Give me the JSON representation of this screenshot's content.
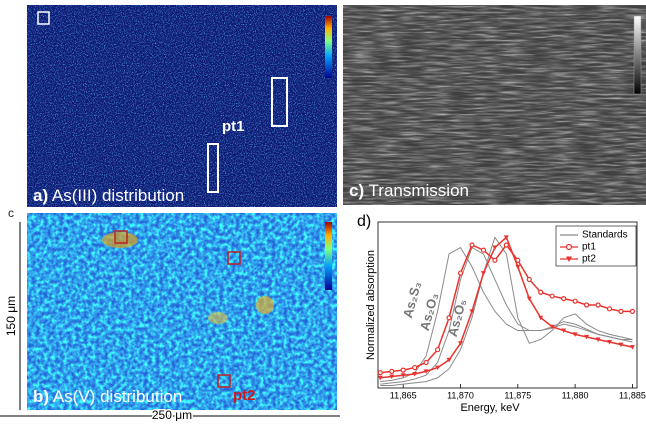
{
  "panels": {
    "a": {
      "letter": "a)",
      "label": "As(III) distribution",
      "point": "pt1"
    },
    "b": {
      "letter": "b)",
      "label": "As(V) distribution",
      "point": "pt2"
    },
    "c": {
      "letter": "c)",
      "label": "Transmission"
    },
    "edge_letter": "c"
  },
  "scale_bars": {
    "vertical": "150 μm",
    "horizontal": "250 μm"
  },
  "chart_data": {
    "type": "line",
    "panel_letter": "d)",
    "xlabel": "Energy, keV",
    "ylabel": "Normalized absorption",
    "xlim": [
      11862.8,
      11885.4
    ],
    "ylim": [
      0,
      1.3
    ],
    "xticks": [
      {
        "value": 11865,
        "label": "11,865"
      },
      {
        "value": 11870,
        "label": "11,870"
      },
      {
        "value": 11875,
        "label": "11,875"
      },
      {
        "value": 11880,
        "label": "11,880"
      },
      {
        "value": 11885,
        "label": "11,885"
      }
    ],
    "x": [
      11863,
      11864,
      11865,
      11866,
      11867,
      11868,
      11869,
      11870,
      11871,
      11872,
      11873,
      11874,
      11875,
      11876,
      11877,
      11878,
      11879,
      11880,
      11881,
      11882,
      11883,
      11884,
      11885
    ],
    "legend": "upper right",
    "standards": {
      "name": "Standards",
      "color": "#8a8a8a",
      "curves": [
        {
          "label": "As₂S₃",
          "values": [
            0.05,
            0.06,
            0.08,
            0.12,
            0.25,
            0.6,
            1.05,
            1.1,
            0.95,
            0.75,
            0.6,
            0.5,
            0.45,
            0.45,
            0.45,
            0.47,
            0.5,
            0.48,
            0.45,
            0.42,
            0.4,
            0.38,
            0.38
          ]
        },
        {
          "label": "As₂O₃",
          "values": [
            0.03,
            0.04,
            0.05,
            0.07,
            0.1,
            0.2,
            0.45,
            0.85,
            1.1,
            1.05,
            0.85,
            0.65,
            0.5,
            0.45,
            0.45,
            0.48,
            0.52,
            0.5,
            0.46,
            0.42,
            0.4,
            0.38,
            0.36
          ]
        },
        {
          "label": "As₂O₅",
          "values": [
            0.02,
            0.02,
            0.03,
            0.04,
            0.05,
            0.08,
            0.15,
            0.3,
            0.55,
            0.9,
            1.18,
            1.05,
            0.55,
            0.35,
            0.38,
            0.45,
            0.55,
            0.58,
            0.5,
            0.45,
            0.42,
            0.4,
            0.38
          ]
        }
      ]
    },
    "series": [
      {
        "name": "pt1",
        "color": "#e8332e",
        "marker": "circle",
        "values": [
          0.12,
          0.13,
          0.14,
          0.16,
          0.2,
          0.3,
          0.55,
          0.9,
          1.12,
          1.08,
          1.0,
          1.12,
          1.0,
          0.85,
          0.75,
          0.72,
          0.7,
          0.68,
          0.65,
          0.65,
          0.62,
          0.6,
          0.6
        ]
      },
      {
        "name": "pt2",
        "color": "#e8332e",
        "marker": "triangle",
        "values": [
          0.08,
          0.09,
          0.1,
          0.11,
          0.13,
          0.16,
          0.22,
          0.35,
          0.6,
          0.9,
          1.1,
          1.18,
          0.95,
          0.7,
          0.55,
          0.48,
          0.45,
          0.42,
          0.4,
          0.38,
          0.36,
          0.34,
          0.32
        ]
      }
    ]
  }
}
